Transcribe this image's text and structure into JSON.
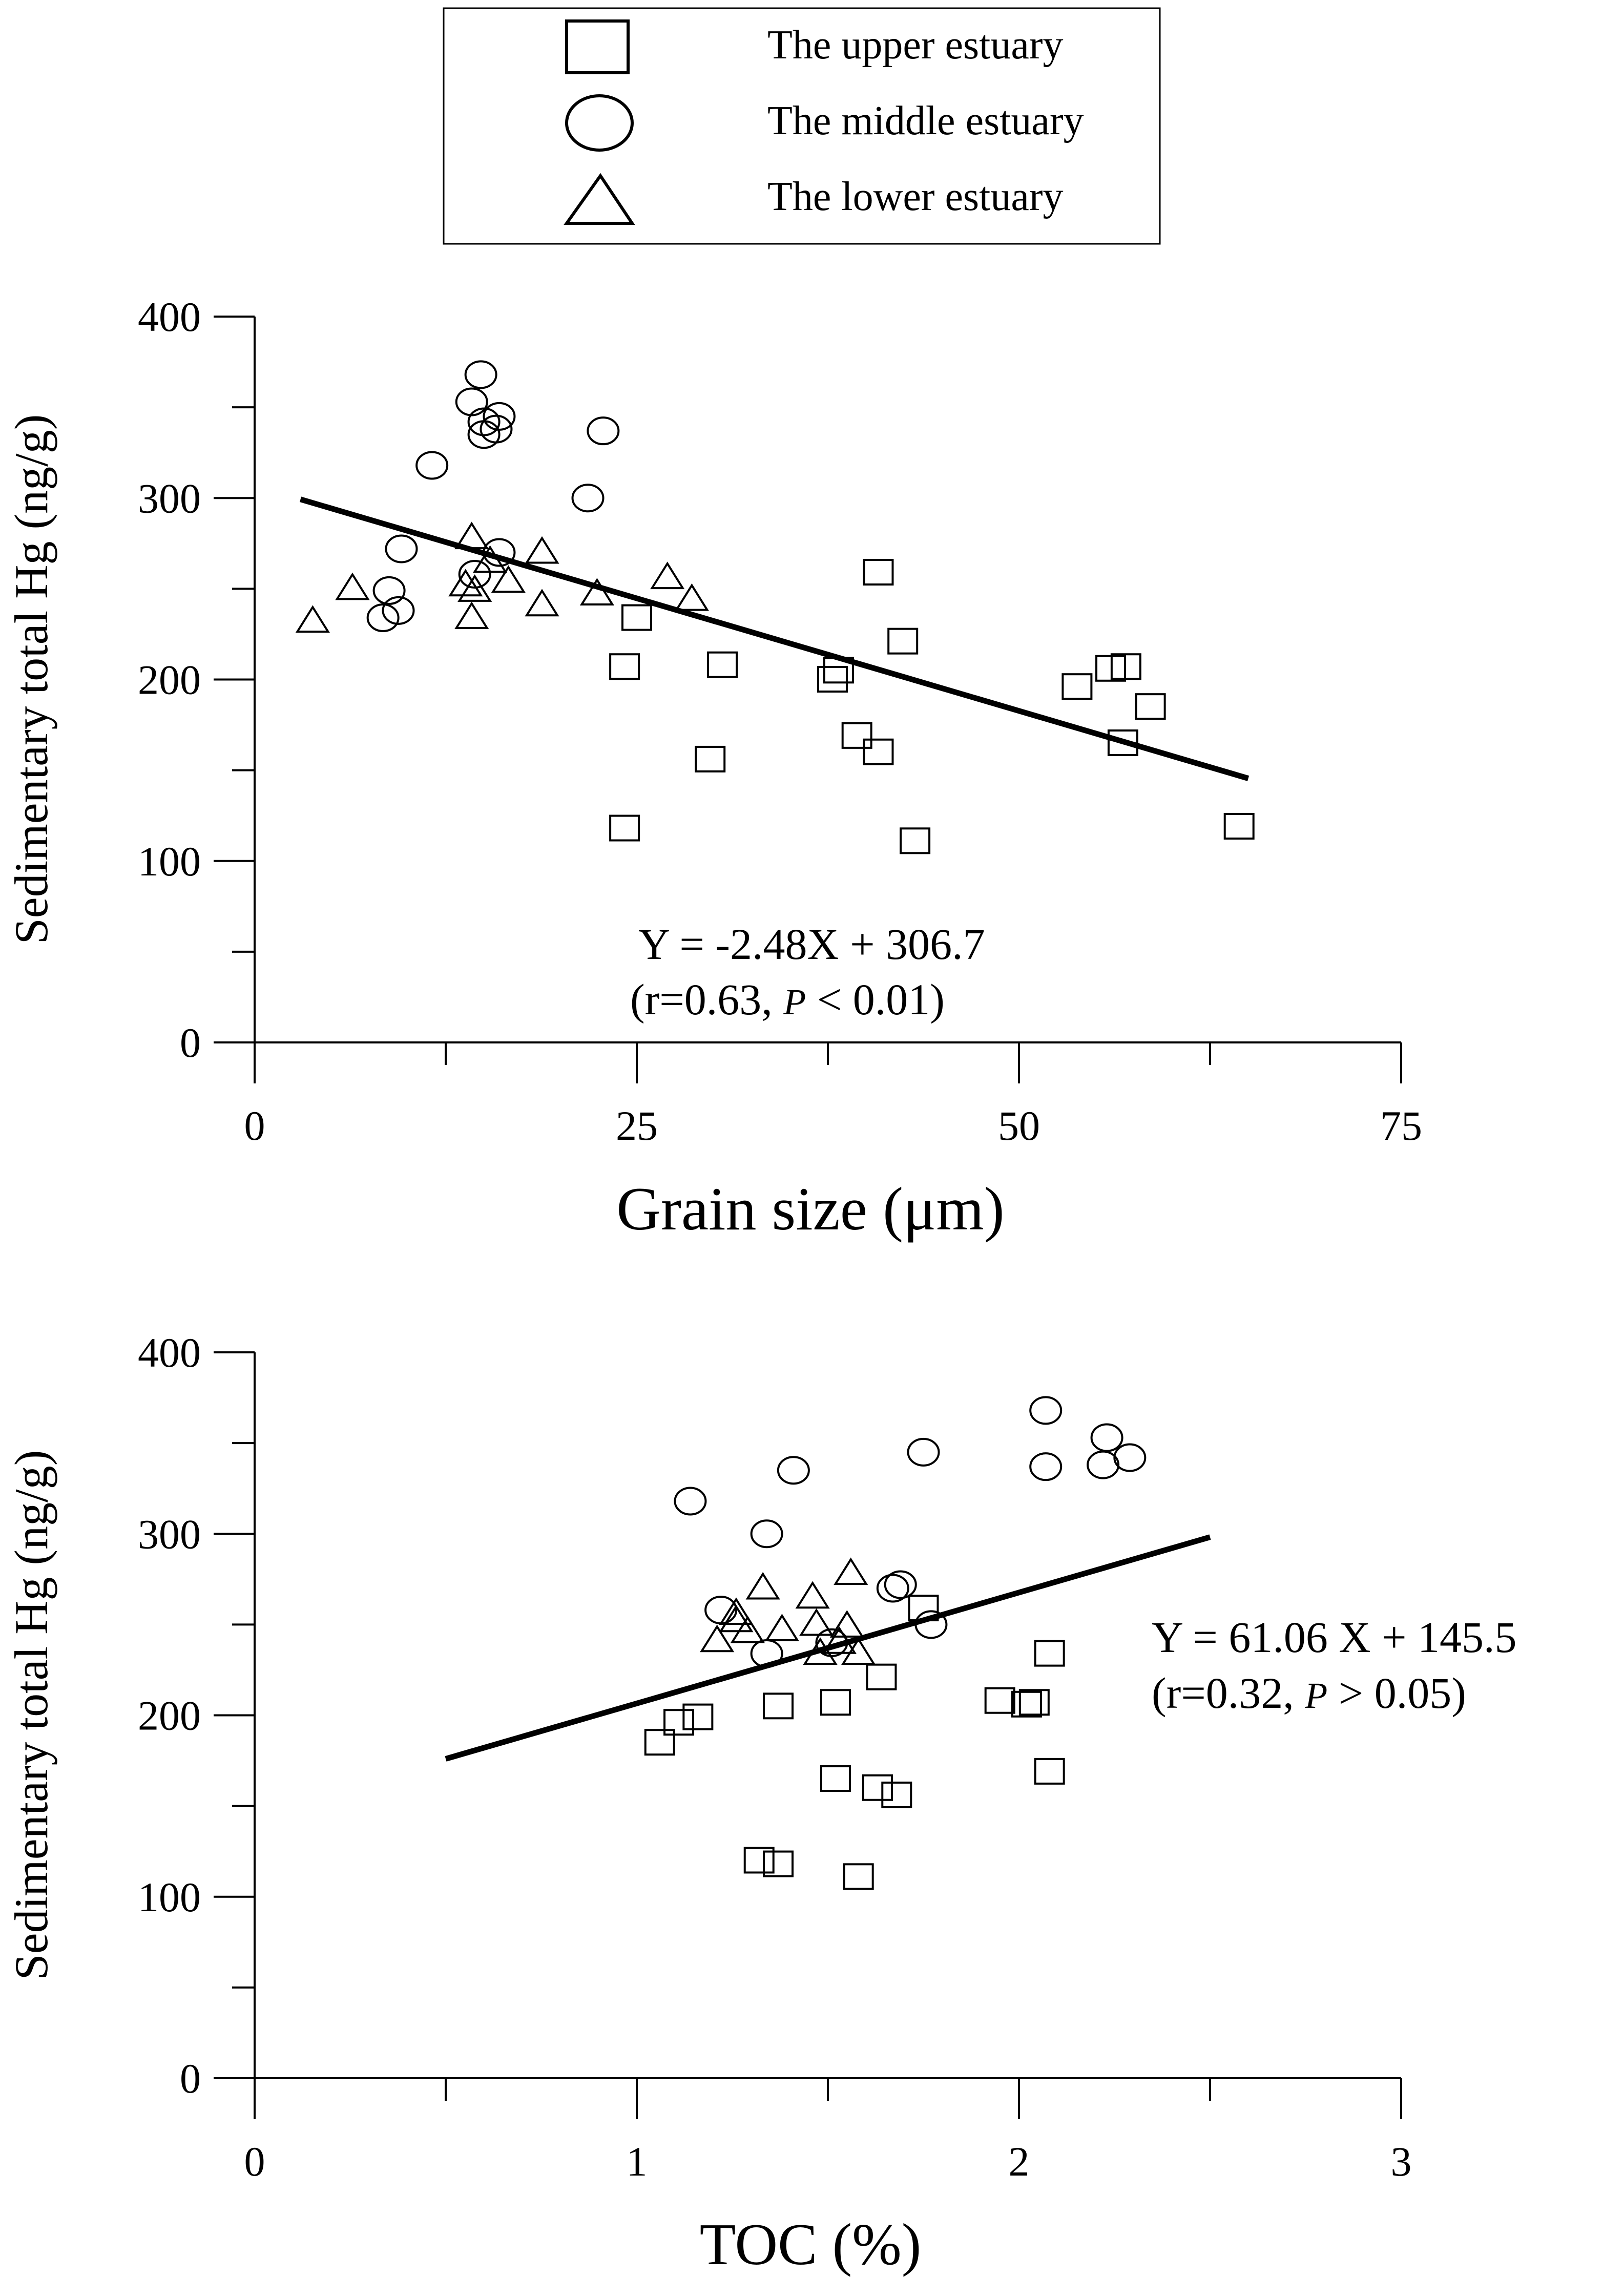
{
  "legend": {
    "items": [
      {
        "marker": "square",
        "label": "The upper estuary"
      },
      {
        "marker": "circle",
        "label": "The middle estuary"
      },
      {
        "marker": "triangle",
        "label": "The lower estuary"
      }
    ]
  },
  "colors": {
    "ink": "#000000",
    "background": "#ffffff"
  },
  "chart_data": [
    {
      "type": "scatter",
      "title": "",
      "xlabel": "Grain size (μm)",
      "ylabel": "Sedimentary total Hg (ng/g)",
      "xlim": [
        0,
        75
      ],
      "ylim": [
        0,
        400
      ],
      "xticks": [
        0,
        25,
        50,
        75
      ],
      "xminor": [
        12.5,
        37.5,
        62.5
      ],
      "yticks": [
        0,
        100,
        200,
        300,
        400
      ],
      "yminor": [
        50,
        150,
        250,
        350
      ],
      "grid": false,
      "series": [
        {
          "name": "The upper estuary",
          "marker": "square",
          "points": [
            [
              40.8,
              258
            ],
            [
              25,
              233
            ],
            [
              42.4,
              220
            ],
            [
              24.2,
              206
            ],
            [
              30.6,
              207
            ],
            [
              37.8,
              199
            ],
            [
              38.2,
              204
            ],
            [
              53.8,
              195
            ],
            [
              56,
              205
            ],
            [
              57,
              206
            ],
            [
              58.6,
              184
            ],
            [
              39.4,
              168
            ],
            [
              40.8,
              159
            ],
            [
              56.8,
              164
            ],
            [
              29.8,
              155
            ],
            [
              24.2,
              117
            ],
            [
              43.2,
              110
            ],
            [
              64.4,
              118
            ]
          ]
        },
        {
          "name": "The middle estuary",
          "marker": "circle",
          "points": [
            [
              14.8,
              368
            ],
            [
              14.2,
              353
            ],
            [
              15,
              342
            ],
            [
              16,
              345
            ],
            [
              15.8,
              338
            ],
            [
              15,
              335
            ],
            [
              22.8,
              337
            ],
            [
              11.6,
              318
            ],
            [
              21.8,
              300
            ],
            [
              9.6,
              272
            ],
            [
              16,
              270
            ],
            [
              14.4,
              258
            ],
            [
              8.8,
              249
            ],
            [
              9.4,
              238
            ],
            [
              8.4,
              234
            ]
          ]
        },
        {
          "name": "The lower estuary",
          "marker": "triangle",
          "points": [
            [
              14.2,
              278
            ],
            [
              18.8,
              270
            ],
            [
              15.4,
              265
            ],
            [
              27,
              256
            ],
            [
              3.8,
              232
            ],
            [
              6.4,
              250
            ],
            [
              13.8,
              252
            ],
            [
              14.4,
              249
            ],
            [
              16.6,
              254
            ],
            [
              22.4,
              247
            ],
            [
              28.6,
              244
            ],
            [
              18.8,
              241
            ],
            [
              14.2,
              234
            ]
          ]
        }
      ],
      "regression": {
        "x": [
          3,
          65
        ],
        "y": [
          299.3,
          145.5
        ]
      },
      "annotation": {
        "equation": "Y = -2.48X + 306.7",
        "stat_open": "(r=0.63, ",
        "p": "P",
        "stat_close": " < 0.01)"
      }
    },
    {
      "type": "scatter",
      "title": "",
      "xlabel": "TOC (%)",
      "ylabel": "Sedimentary total Hg (ng/g)",
      "xlim": [
        0,
        3
      ],
      "ylim": [
        0,
        400
      ],
      "xticks": [
        0,
        1,
        2,
        3
      ],
      "xminor": [
        0.5,
        1.5,
        2.5
      ],
      "yticks": [
        0,
        100,
        200,
        300,
        400
      ],
      "yminor": [
        50,
        150,
        250,
        350
      ],
      "grid": false,
      "series": [
        {
          "name": "The upper estuary",
          "marker": "square",
          "points": [
            [
              1.75,
              258
            ],
            [
              2.08,
              233
            ],
            [
              1.64,
              220
            ],
            [
              1.95,
              207
            ],
            [
              2.02,
              205
            ],
            [
              2.04,
              206
            ],
            [
              1.52,
              206
            ],
            [
              1.37,
              204
            ],
            [
              1.16,
              198
            ],
            [
              1.11,
              195
            ],
            [
              1.06,
              184
            ],
            [
              2.08,
              168
            ],
            [
              1.52,
              164
            ],
            [
              1.63,
              159
            ],
            [
              1.68,
              155
            ],
            [
              1.32,
              119
            ],
            [
              1.37,
              117
            ],
            [
              1.58,
              110
            ]
          ]
        },
        {
          "name": "The middle estuary",
          "marker": "circle",
          "points": [
            [
              2.07,
              368
            ],
            [
              2.23,
              353
            ],
            [
              2.29,
              342
            ],
            [
              1.75,
              345
            ],
            [
              2.07,
              337
            ],
            [
              2.22,
              338
            ],
            [
              1.41,
              335
            ],
            [
              1.14,
              318
            ],
            [
              1.34,
              300
            ],
            [
              1.69,
              272
            ],
            [
              1.67,
              270
            ],
            [
              1.77,
              250
            ],
            [
              1.22,
              258
            ],
            [
              1.51,
              240
            ],
            [
              1.34,
              234
            ]
          ]
        },
        {
          "name": "The lower estuary",
          "marker": "triangle",
          "points": [
            [
              1.56,
              278
            ],
            [
              1.33,
              270
            ],
            [
              1.46,
              265
            ],
            [
              1.26,
              256
            ],
            [
              1.26,
              252
            ],
            [
              1.47,
              250
            ],
            [
              1.55,
              249
            ],
            [
              1.38,
              247
            ],
            [
              1.29,
              246
            ],
            [
              1.21,
              241
            ],
            [
              1.53,
              240
            ],
            [
              1.48,
              234
            ],
            [
              1.58,
              234
            ]
          ]
        }
      ],
      "regression": {
        "x": [
          0.5,
          2.5
        ],
        "y": [
          176.0,
          298.2
        ]
      },
      "annotation": {
        "equation": "Y = 61.06 X + 145.5",
        "stat_open": "(r=0.32, ",
        "p": "P",
        "stat_close": " > 0.05)"
      }
    }
  ]
}
